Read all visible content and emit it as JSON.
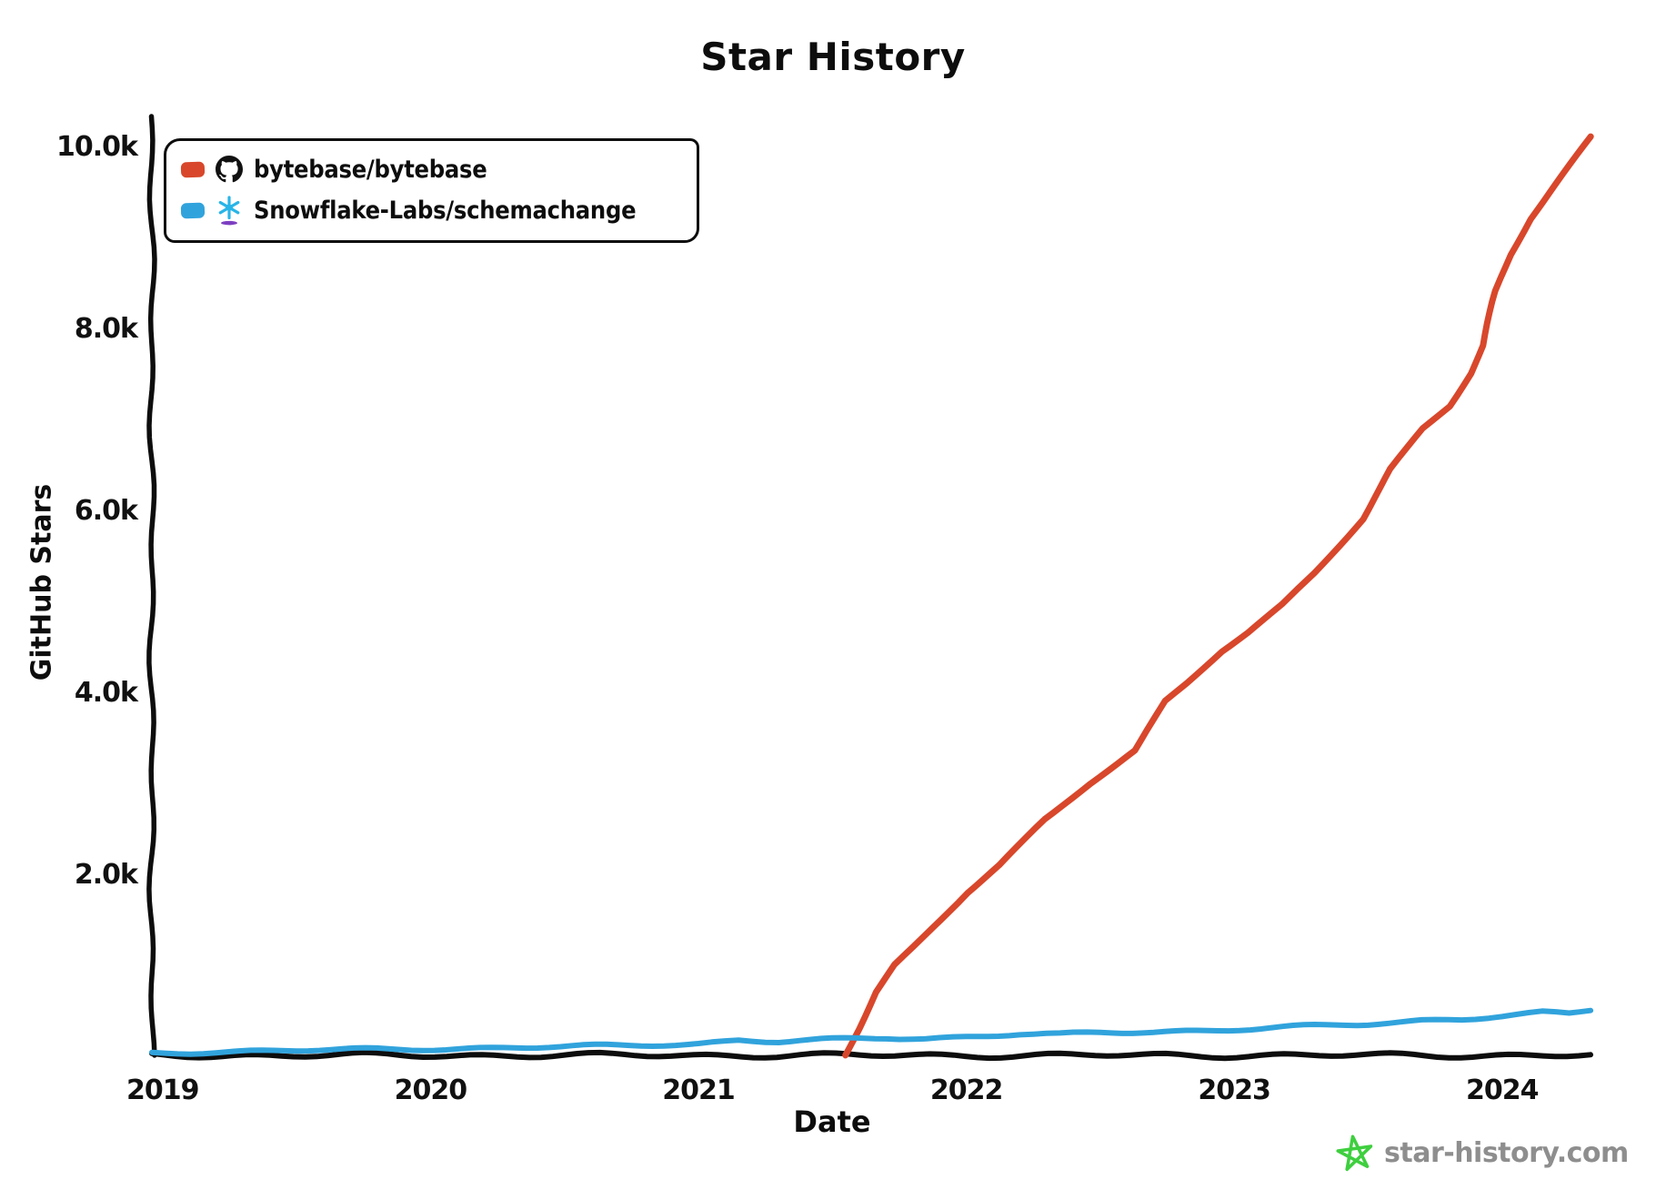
{
  "page_title": "Star History",
  "watermark": {
    "label": "star-history.com",
    "icon": "star-icon",
    "text_color": "#8e8e8e",
    "star_color": "#3ecf3e"
  },
  "colors": {
    "axis": "#0d0d0d",
    "bytebase_red": "#d8472b",
    "schemachange_blue": "#31a3dc",
    "snowflake_icon_blue": "#29b5e8",
    "snowflake_icon_purple": "#7d3fc1"
  },
  "chart_data": {
    "type": "line",
    "title": "Star History",
    "xlabel": "Date",
    "ylabel": "GitHub Stars",
    "grid": false,
    "legend_position": "top-left",
    "xlim": [
      2018.96,
      2024.33
    ],
    "ylim": [
      0,
      10320
    ],
    "x_ticks": [
      {
        "value": 2019,
        "label": "2019"
      },
      {
        "value": 2020,
        "label": "2020"
      },
      {
        "value": 2021,
        "label": "2021"
      },
      {
        "value": 2022,
        "label": "2022"
      },
      {
        "value": 2023,
        "label": "2023"
      },
      {
        "value": 2024,
        "label": "2024"
      }
    ],
    "y_ticks": [
      {
        "value": 2000,
        "label": "2.0k"
      },
      {
        "value": 4000,
        "label": "4.0k"
      },
      {
        "value": 6000,
        "label": "6.0k"
      },
      {
        "value": 8000,
        "label": "8.0k"
      },
      {
        "value": 10000,
        "label": "10.0k"
      }
    ],
    "series": [
      {
        "name": "bytebase/bytebase",
        "icon": "github-icon",
        "color": "#d8472b",
        "points": [
          [
            2021.55,
            0
          ],
          [
            2021.6,
            300
          ],
          [
            2021.66,
            700
          ],
          [
            2021.73,
            1000
          ],
          [
            2021.8,
            1200
          ],
          [
            2021.9,
            1500
          ],
          [
            2022.0,
            1800
          ],
          [
            2022.12,
            2100
          ],
          [
            2022.29,
            2600
          ],
          [
            2022.46,
            3000
          ],
          [
            2022.63,
            3350
          ],
          [
            2022.74,
            3900
          ],
          [
            2022.82,
            4100
          ],
          [
            2022.95,
            4450
          ],
          [
            2023.05,
            4650
          ],
          [
            2023.18,
            4950
          ],
          [
            2023.3,
            5300
          ],
          [
            2023.48,
            5900
          ],
          [
            2023.58,
            6450
          ],
          [
            2023.7,
            6900
          ],
          [
            2023.8,
            7150
          ],
          [
            2023.88,
            7500
          ],
          [
            2023.93,
            7800
          ],
          [
            2023.98,
            8400
          ],
          [
            2024.03,
            8800
          ],
          [
            2024.1,
            9200
          ],
          [
            2024.2,
            9600
          ],
          [
            2024.33,
            10100
          ]
        ]
      },
      {
        "name": "Snowflake-Labs/schemachange",
        "icon": "snowflake-icon",
        "color": "#31a3dc",
        "points": [
          [
            2018.96,
            25
          ],
          [
            2019.2,
            40
          ],
          [
            2019.5,
            55
          ],
          [
            2019.8,
            65
          ],
          [
            2020.1,
            75
          ],
          [
            2020.4,
            90
          ],
          [
            2020.7,
            105
          ],
          [
            2021.0,
            130
          ],
          [
            2021.15,
            165
          ],
          [
            2021.3,
            150
          ],
          [
            2021.5,
            170
          ],
          [
            2021.7,
            195
          ],
          [
            2021.85,
            185
          ],
          [
            2022.0,
            205
          ],
          [
            2022.2,
            235
          ],
          [
            2022.35,
            225
          ],
          [
            2022.5,
            250
          ],
          [
            2022.7,
            260
          ],
          [
            2022.9,
            275
          ],
          [
            2023.1,
            295
          ],
          [
            2023.3,
            320
          ],
          [
            2023.5,
            345
          ],
          [
            2023.7,
            385
          ],
          [
            2023.85,
            400
          ],
          [
            2024.0,
            430
          ],
          [
            2024.15,
            465
          ],
          [
            2024.25,
            455
          ],
          [
            2024.33,
            500
          ]
        ]
      }
    ]
  }
}
